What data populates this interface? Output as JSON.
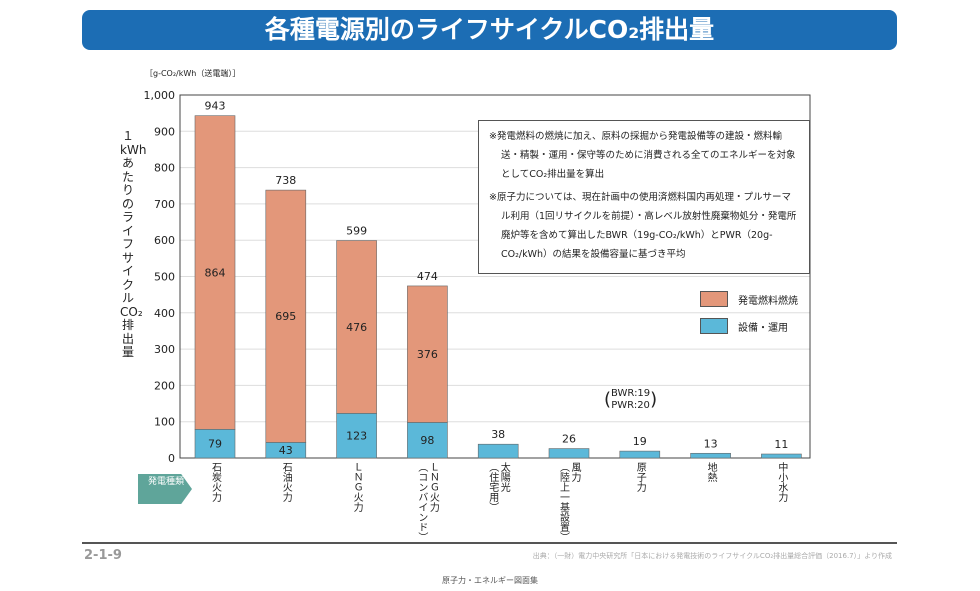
{
  "title": "各種電源別のライフサイクルCO₂排出量",
  "chart_data": {
    "type": "bar",
    "stacked": true,
    "ylabel": "１kWhあたりのライフサイクルCO₂排出量",
    "unit": "［g-CO₂/kWh（送電端）］",
    "ylim": [
      0,
      1000
    ],
    "yticks": [
      "0",
      "100",
      "200",
      "300",
      "400",
      "500",
      "600",
      "700",
      "800",
      "900",
      "1,000"
    ],
    "grid": true,
    "x_tag": "発電種類",
    "categories": [
      "石炭火力",
      "石油火力",
      "LNG火力",
      "LNG火力（コンバインド）",
      "太陽光（住宅用）",
      "風力（陸上一基設置）",
      "原子力",
      "地熱",
      "中小水力"
    ],
    "category_labels": [
      "石炭火力",
      "石油火力",
      "ＬＮＧ火力",
      "ＬＮＧ火力\n（コンバインド）",
      "太陽光\n（住宅用）",
      "風力\n（陸上一基設置）",
      "原子力",
      "地熱",
      "中小水力"
    ],
    "series": [
      {
        "name": "設備・運用",
        "color": "#5bb8d9",
        "values": [
          79,
          43,
          123,
          98,
          38,
          26,
          19,
          13,
          11
        ]
      },
      {
        "name": "発電燃料燃焼",
        "color": "#e3977a",
        "values": [
          864,
          695,
          476,
          376,
          0,
          0,
          0,
          0,
          0
        ]
      }
    ],
    "totals": [
      943,
      738,
      599,
      474,
      38,
      26,
      19,
      13,
      11
    ],
    "legend": "right",
    "annotation": "BWR:19\nPWR:20"
  },
  "notes": [
    "※発電燃料の燃焼に加え、原料の採掘から発電設備等の建設・燃料輸送・精製・運用・保守等のために消費される全てのエネルギーを対象としてCO₂排出量を算出",
    "※原子力については、現在計画中の使用済燃料国内再処理・プルサーマル利用（1回リサイクルを前提）・高レベル放射性廃棄物処分・発電所廃炉等を含めて算出したBWR（19g-CO₂/kWh）とPWR（20g-CO₂/kWh）の結果を設備容量に基づき平均"
  ],
  "footer": {
    "page": "2-1-9",
    "source": "出典：（一財）電力中央研究所「日本における発電技術のライフサイクルCO₂排出量総合評価（2016.7）」より作成",
    "book": "原子力・エネルギー図面集"
  }
}
